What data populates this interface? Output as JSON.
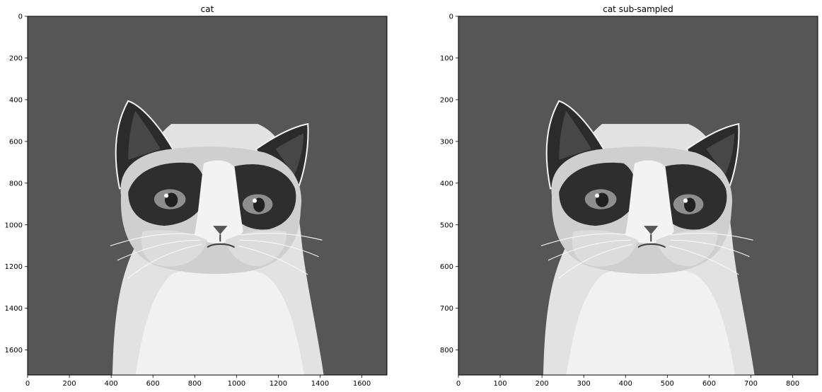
{
  "chart_data": [
    {
      "type": "image",
      "title": "cat",
      "xlim": [
        0,
        1720
      ],
      "ylim": [
        1720,
        0
      ],
      "xticks": [
        0,
        200,
        400,
        600,
        800,
        1000,
        1200,
        1400,
        1600
      ],
      "yticks": [
        0,
        200,
        400,
        600,
        800,
        1000,
        1200,
        1400,
        1600
      ],
      "image_content": "grayscale photo of a grumpy cat on a dark gray background",
      "background_color": "#565656",
      "colormap": "gray"
    },
    {
      "type": "image",
      "title": "cat sub-sampled",
      "xlim": [
        0,
        860
      ],
      "ylim": [
        860,
        0
      ],
      "xticks": [
        0,
        100,
        200,
        300,
        400,
        500,
        600,
        700,
        800
      ],
      "yticks": [
        0,
        100,
        200,
        300,
        400,
        500,
        600,
        700,
        800
      ],
      "image_content": "grayscale photo of a grumpy cat on a dark gray background (sub-sampled by 2)",
      "background_color": "#565656",
      "colormap": "gray"
    }
  ]
}
